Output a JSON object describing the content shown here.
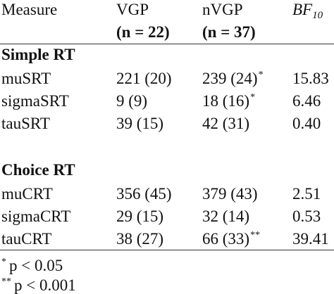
{
  "table": {
    "header": {
      "measure": "Measure",
      "vgp": "VGP",
      "nvgp": "nVGP",
      "bf": "BF",
      "bf_sub": "10",
      "vgp_n": "(n = 22)",
      "nvgp_n": "(n = 37)"
    },
    "sections": [
      {
        "title": "Simple RT",
        "rows": [
          {
            "cells": [
              "muSRT",
              "221 (20)",
              "239 (24)",
              "15.83"
            ],
            "note": "*"
          },
          {
            "cells": [
              "sigmaSRT",
              "9 (9)",
              "18 (16)",
              "6.46"
            ],
            "note": "*"
          },
          {
            "cells": [
              "tauSRT",
              "39 (15)",
              "42 (31)",
              "0.40"
            ]
          }
        ]
      },
      {
        "title": "Choice RT",
        "rows": [
          {
            "cells": [
              "muCRT",
              "356 (45)",
              "379 (43)",
              "2.51"
            ]
          },
          {
            "cells": [
              "sigmaCRT",
              "29 (15)",
              "32 (14)",
              "0.53"
            ]
          },
          {
            "cells": [
              "tauCRT",
              "38 (27)",
              "66 (33)",
              "39.41"
            ],
            "note": "**"
          }
        ]
      }
    ],
    "footnotes": [
      {
        "mark": "*",
        "text": "p < 0.05"
      },
      {
        "mark": "**",
        "text": "p < 0.001"
      }
    ]
  }
}
